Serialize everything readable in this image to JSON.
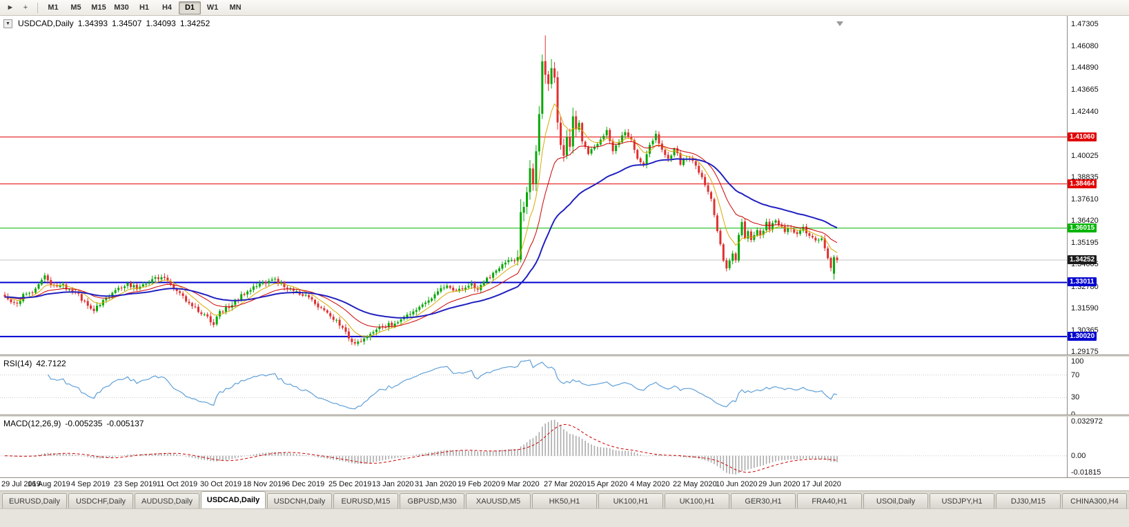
{
  "toolbar": {
    "tools": [
      {
        "name": "cursor-icon",
        "glyph": "►"
      },
      {
        "name": "crosshair-icon",
        "glyph": "+"
      }
    ],
    "timeframes": [
      "M1",
      "M5",
      "M15",
      "M30",
      "H1",
      "H4",
      "D1",
      "W1",
      "MN"
    ],
    "active_timeframe": "D1"
  },
  "chart_data": {
    "type": "candlestick",
    "symbol": "USDCAD",
    "timeframe": "Daily",
    "title": "USDCAD,Daily",
    "title_ohlc": {
      "open": "1.34393",
      "high": "1.34507",
      "low": "1.34093",
      "close": "1.34252"
    },
    "candle_count": 272,
    "close_anchors": [
      [
        0,
        1.3215
      ],
      [
        2,
        1.319
      ],
      [
        4,
        1.3175
      ],
      [
        6,
        1.323
      ],
      [
        9,
        1.3255
      ],
      [
        12,
        1.331
      ],
      [
        13,
        1.3332
      ],
      [
        15,
        1.3275
      ],
      [
        18,
        1.3292
      ],
      [
        21,
        1.3262
      ],
      [
        24,
        1.3232
      ],
      [
        27,
        1.3168
      ],
      [
        29,
        1.3148
      ],
      [
        32,
        1.3196
      ],
      [
        36,
        1.3256
      ],
      [
        40,
        1.3296
      ],
      [
        43,
        1.3266
      ],
      [
        46,
        1.3302
      ],
      [
        50,
        1.3326
      ],
      [
        53,
        1.3312
      ],
      [
        56,
        1.3246
      ],
      [
        59,
        1.3206
      ],
      [
        62,
        1.3162
      ],
      [
        65,
        1.3122
      ],
      [
        68,
        1.3076
      ],
      [
        70,
        1.3132
      ],
      [
        73,
        1.3166
      ],
      [
        76,
        1.3212
      ],
      [
        79,
        1.3252
      ],
      [
        82,
        1.3286
      ],
      [
        85,
        1.3306
      ],
      [
        88,
        1.3312
      ],
      [
        91,
        1.3286
      ],
      [
        94,
        1.3262
      ],
      [
        98,
        1.3226
      ],
      [
        101,
        1.3182
      ],
      [
        104,
        1.3142
      ],
      [
        107,
        1.3102
      ],
      [
        110,
        1.3046
      ],
      [
        112,
        1.2996
      ],
      [
        114,
        1.2962
      ],
      [
        116,
        1.2976
      ],
      [
        118,
        1.3006
      ],
      [
        121,
        1.3042
      ],
      [
        124,
        1.3062
      ],
      [
        126,
        1.3072
      ],
      [
        129,
        1.3096
      ],
      [
        132,
        1.3132
      ],
      [
        135,
        1.3162
      ],
      [
        138,
        1.3206
      ],
      [
        140,
        1.3236
      ],
      [
        143,
        1.3282
      ],
      [
        146,
        1.3256
      ],
      [
        149,
        1.3272
      ],
      [
        152,
        1.3292
      ],
      [
        154,
        1.3256
      ],
      [
        156,
        1.3306
      ],
      [
        158,
        1.3332
      ],
      [
        160,
        1.3372
      ],
      [
        162,
        1.3396
      ],
      [
        164,
        1.3416
      ],
      [
        166,
        1.3432
      ],
      [
        167,
        1.3422
      ],
      [
        168,
        1.369
      ],
      [
        169,
        1.3732
      ],
      [
        170,
        1.3792
      ],
      [
        171,
        1.3922
      ],
      [
        172,
        1.3832
      ],
      [
        173,
        1.4012
      ],
      [
        174,
        1.4232
      ],
      [
        175,
        1.4512
      ],
      [
        176,
        1.4452
      ],
      [
        177,
        1.4382
      ],
      [
        178,
        1.4482
      ],
      [
        179,
        1.4442
      ],
      [
        180,
        1.4182
      ],
      [
        181,
        1.4062
      ],
      [
        182,
        1.3992
      ],
      [
        183,
        1.4092
      ],
      [
        184,
        1.4062
      ],
      [
        185,
        1.4212
      ],
      [
        186,
        1.4142
      ],
      [
        187,
        1.4192
      ],
      [
        188,
        1.4092
      ],
      [
        190,
        1.4022
      ],
      [
        192,
        1.4046
      ],
      [
        194,
        1.4092
      ],
      [
        196,
        1.4136
      ],
      [
        198,
        1.4032
      ],
      [
        200,
        1.4076
      ],
      [
        202,
        1.4132
      ],
      [
        204,
        1.4086
      ],
      [
        206,
        1.3996
      ],
      [
        208,
        1.3952
      ],
      [
        210,
        1.4066
      ],
      [
        212,
        1.4122
      ],
      [
        214,
        1.4026
      ],
      [
        216,
        1.3976
      ],
      [
        218,
        1.4052
      ],
      [
        220,
        1.3962
      ],
      [
        222,
        1.3992
      ],
      [
        224,
        1.3976
      ],
      [
        226,
        1.3902
      ],
      [
        228,
        1.3846
      ],
      [
        230,
        1.3756
      ],
      [
        231,
        1.3676
      ],
      [
        232,
        1.3576
      ],
      [
        233,
        1.3512
      ],
      [
        234,
        1.3426
      ],
      [
        235,
        1.3386
      ],
      [
        236,
        1.3426
      ],
      [
        237,
        1.3466
      ],
      [
        238,
        1.3416
      ],
      [
        239,
        1.3562
      ],
      [
        240,
        1.3642
      ],
      [
        241,
        1.3552
      ],
      [
        242,
        1.3586
      ],
      [
        243,
        1.3536
      ],
      [
        244,
        1.3566
      ],
      [
        245,
        1.3596
      ],
      [
        246,
        1.3556
      ],
      [
        247,
        1.3586
      ],
      [
        248,
        1.3626
      ],
      [
        249,
        1.3592
      ],
      [
        250,
        1.3622
      ],
      [
        251,
        1.3652
      ],
      [
        252,
        1.3626
      ],
      [
        254,
        1.3586
      ],
      [
        256,
        1.3606
      ],
      [
        258,
        1.3566
      ],
      [
        260,
        1.3602
      ],
      [
        262,
        1.3562
      ],
      [
        264,
        1.3536
      ],
      [
        266,
        1.3546
      ],
      [
        267,
        1.3486
      ],
      [
        268,
        1.3426
      ],
      [
        269,
        1.3386
      ],
      [
        270,
        1.3438
      ],
      [
        271,
        1.34252
      ]
    ],
    "candle_overrides": {
      "114": {
        "l": 1.2952
      },
      "168": {
        "o": 1.3428,
        "h": 1.3762,
        "l": 1.3412
      },
      "175": {
        "h": 1.4562
      },
      "176": {
        "h": 1.4668
      },
      "235": {
        "l": 1.3362
      },
      "270": {
        "o": 1.335,
        "l": 1.3316
      },
      "271": {
        "o": 1.34393,
        "h": 1.34507,
        "l": 1.34093,
        "c": 1.34252
      }
    },
    "y_axis_ticks": [
      "1.47305",
      "1.46080",
      "1.44890",
      "1.43665",
      "1.42440",
      "1.40025",
      "1.38835",
      "1.37610",
      "1.36420",
      "1.35195",
      "1.34005",
      "1.32780",
      "1.31590",
      "1.30365",
      "1.29175"
    ],
    "x_axis_labels": [
      "29 Jul 2019",
      "16 Aug 2019",
      "4 Sep 2019",
      "23 Sep 2019",
      "11 Oct 2019",
      "30 Oct 2019",
      "18 Nov 2019",
      "6 Dec 2019",
      "25 Dec 2019",
      "13 Jan 2020",
      "31 Jan 2020",
      "19 Feb 2020",
      "9 Mar 2020",
      "27 Mar 2020",
      "15 Apr 2020",
      "4 May 2020",
      "22 May 2020",
      "10 Jun 2020",
      "29 Jun 2020",
      "17 Jul 2020"
    ],
    "x_label_every": 14,
    "horizontal_lines": [
      {
        "label": "1.41060",
        "value": 1.4106,
        "color": "#E00000",
        "width": 1
      },
      {
        "label": "1.38464",
        "value": 1.38464,
        "color": "#E00000",
        "width": 1
      },
      {
        "label": "1.36015",
        "value": 1.36015,
        "color": "#00B400",
        "width": 1
      },
      {
        "label": "1.33011",
        "value": 1.33011,
        "color": "#0000D0",
        "width": 2
      },
      {
        "label": "1.30020",
        "value": 1.3002,
        "color": "#0000D0",
        "width": 2
      }
    ],
    "current_price": {
      "label": "1.34252",
      "value": 1.34252,
      "badge_color": "#1C1C1C",
      "line_color": "#C4C4C4"
    },
    "indicators": {
      "rsi": {
        "label": "RSI(14)",
        "value": "42.7122",
        "period": 14,
        "scale_labels": [
          "100",
          "70",
          "30",
          "0"
        ],
        "levels": [
          70,
          30
        ],
        "line_color": "#5F9FD8"
      },
      "macd": {
        "label": "MACD(12,26,9)",
        "value_main": "-0.005235",
        "value_signal": "-0.005137",
        "fast": 12,
        "slow": 26,
        "signal": 9,
        "scale_labels": [
          "0.032972",
          "0.00",
          "-0.01815"
        ],
        "scale_max": 0.032972,
        "scale_min": -0.01815,
        "histogram_color": "#ABABAB",
        "signal_color": "#CC0000"
      }
    },
    "candle_colors": {
      "up": "#08A808",
      "down": "#E03030"
    },
    "moving_average_colors": [
      "#D8A800",
      "#CC0000",
      "#2020C0"
    ]
  },
  "tabs": {
    "active": "USDCAD,Daily",
    "items": [
      "EURUSD,Daily",
      "USDCHF,Daily",
      "AUDUSD,Daily",
      "USDCAD,Daily",
      "USDCNH,Daily",
      "EURUSD,M15",
      "GBPUSD,M30",
      "XAUUSD,M5",
      "HK50,H1",
      "UK100,H1",
      "UK100,H1",
      "GER30,H1",
      "FRA40,H1",
      "USOil,Daily",
      "USDJPY,H1",
      "DJ30,M15",
      "CHINA300,H4"
    ]
  }
}
